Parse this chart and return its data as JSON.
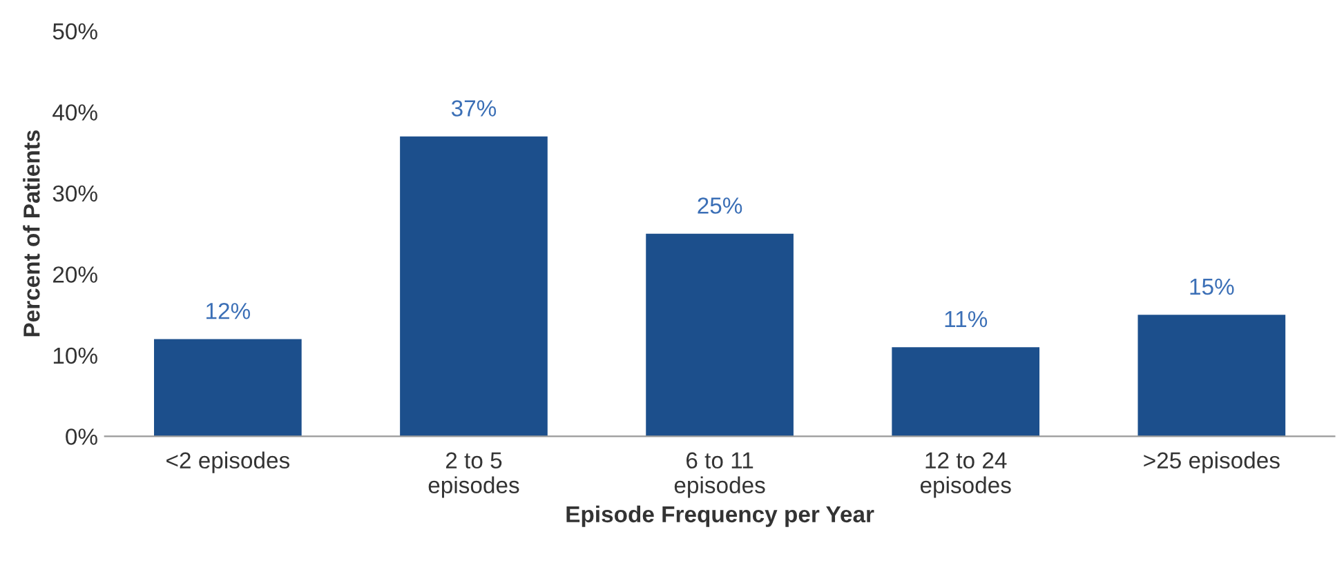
{
  "chart_data": {
    "type": "bar",
    "categories": [
      "<2 episodes",
      "2 to 5\nepisodes",
      "6 to 11\nepisodes",
      "12 to 24\nepisodes",
      ">25 episodes"
    ],
    "values": [
      12,
      37,
      25,
      11,
      15
    ],
    "value_labels": [
      "12%",
      "37%",
      "25%",
      "11%",
      "15%"
    ],
    "color": "#1c4f8c",
    "xlabel": "Episode Frequency per Year",
    "ylabel": "Percent of Patients",
    "ylim": [
      0,
      50
    ],
    "yticks": [
      {
        "value": 0,
        "label": "0%"
      },
      {
        "value": 10,
        "label": "10%"
      },
      {
        "value": 20,
        "label": "20%"
      },
      {
        "value": 30,
        "label": "30%"
      },
      {
        "value": 40,
        "label": "40%"
      },
      {
        "value": 50,
        "label": "50%"
      }
    ],
    "grid": false,
    "legend": false
  }
}
